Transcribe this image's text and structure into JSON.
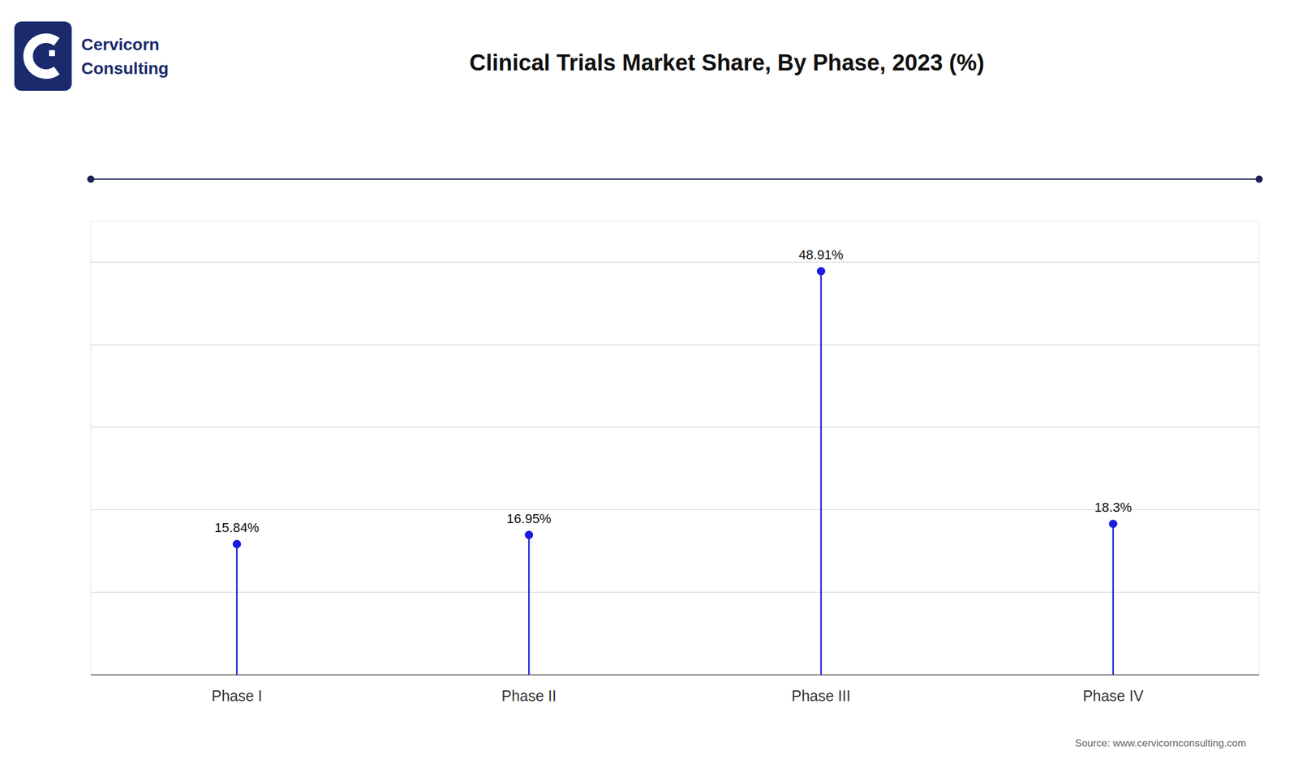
{
  "chart_data": {
    "type": "lollipop",
    "title": "Clinical Trials Market Share, By Phase, 2023 (%)",
    "categories": [
      "Phase I",
      "Phase II",
      "Phase III",
      "Phase IV"
    ],
    "values": [
      15.84,
      16.95,
      48.91,
      18.3
    ],
    "value_labels": [
      "15.84%",
      "16.95%",
      "48.91%",
      "18.3%"
    ],
    "data_labels": true,
    "color": "#1c1cdd",
    "ylim": [
      0,
      55
    ],
    "yticks": [
      10,
      20,
      30,
      40,
      50
    ],
    "grid": true,
    "tick_labels": "x",
    "annotations": [
      "Source: www.cervicornconsulting.com",
      "Cervicorn",
      "Consulting"
    ]
  }
}
